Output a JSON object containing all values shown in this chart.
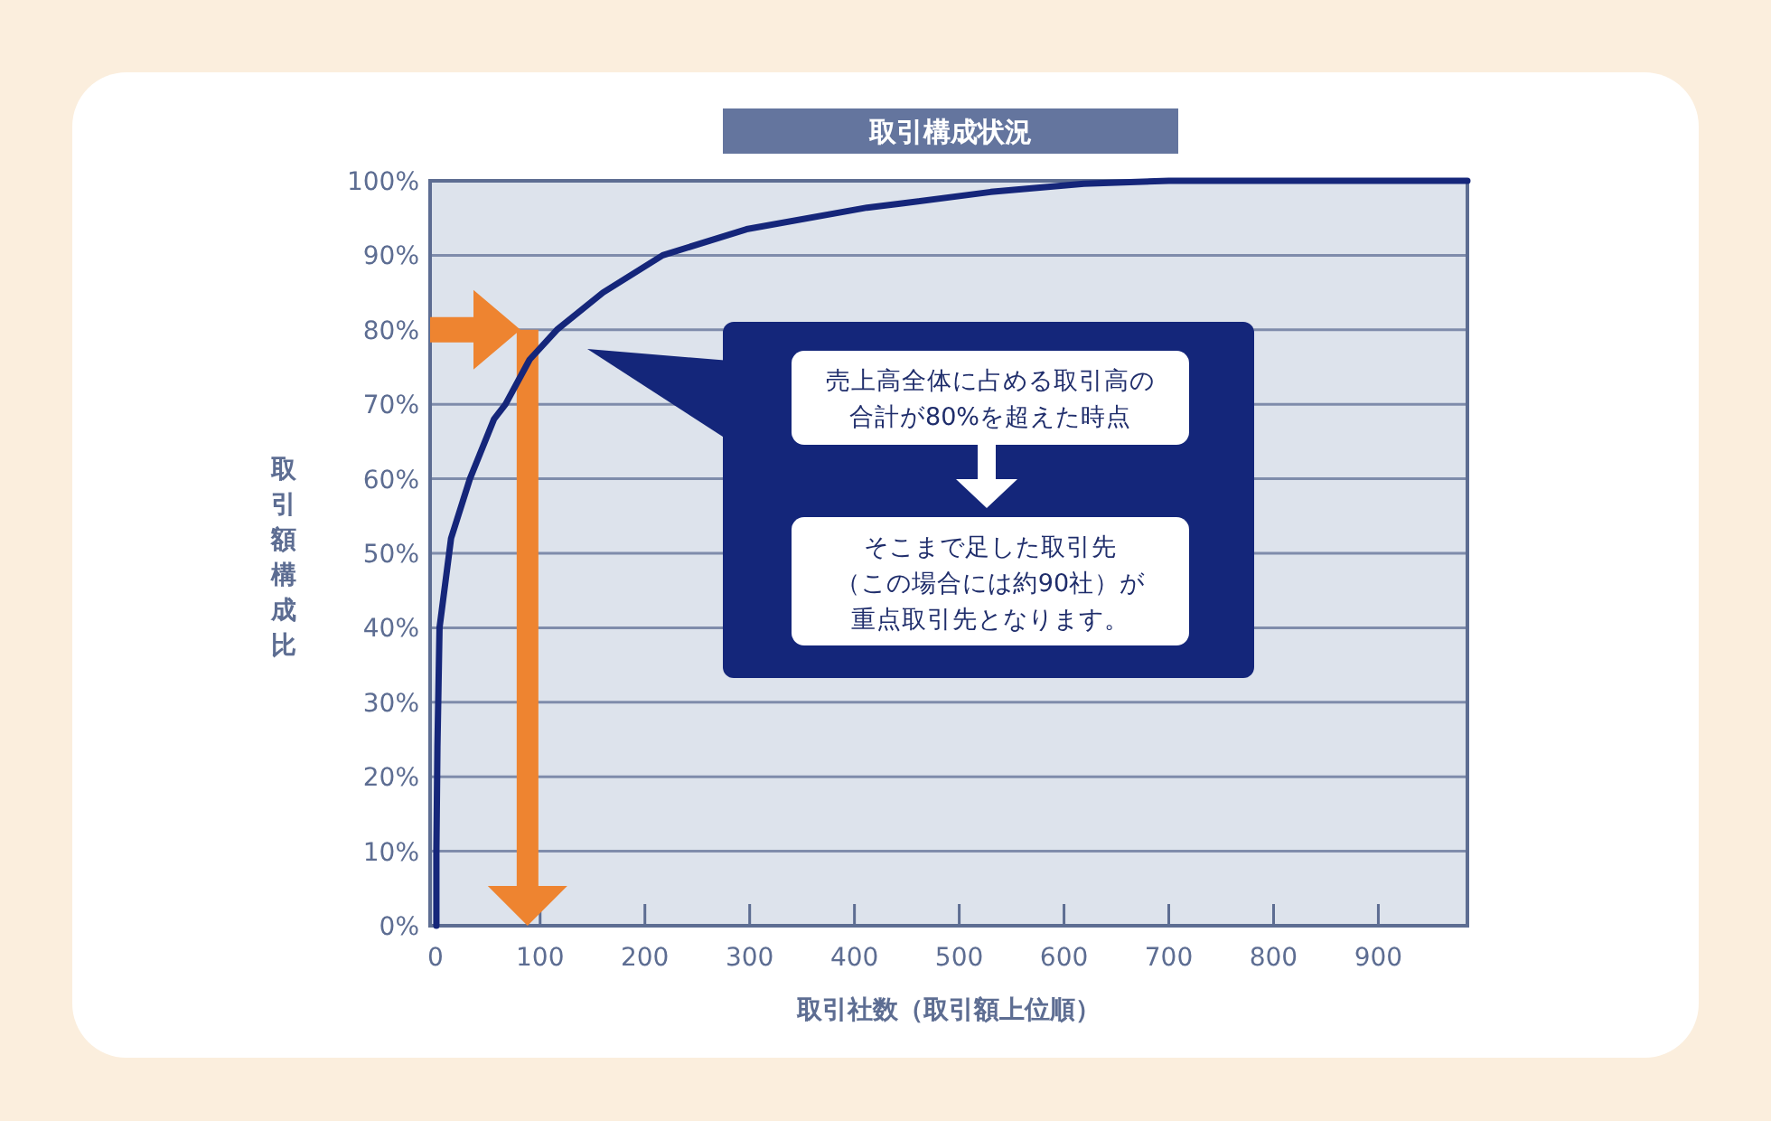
{
  "chart_data": {
    "type": "line",
    "title": "取引構成状況",
    "xlabel": "取引社数（取引額上位順）",
    "ylabel": "取引額構成比",
    "x": [
      1,
      1,
      2,
      4,
      15,
      33,
      56,
      67,
      90,
      116,
      160,
      217,
      297,
      412,
      447,
      530,
      619,
      700,
      985
    ],
    "series": [
      {
        "color": "#15267a",
        "values": [
          0,
          10,
          24,
          40,
          52,
          60,
          68,
          70,
          76,
          80,
          85,
          90,
          93.5,
          96.4,
          97,
          98.5,
          99.6,
          100,
          100
        ]
      }
    ],
    "xlim": [
      -5,
      985
    ],
    "xticks": [
      0,
      100,
      200,
      300,
      400,
      500,
      600,
      700,
      800,
      900
    ],
    "ylim": [
      0,
      100
    ],
    "yticks": [
      {
        "value": 0,
        "label": "0%"
      },
      {
        "value": 10,
        "label": "10%"
      },
      {
        "value": 20,
        "label": "20%"
      },
      {
        "value": 30,
        "label": "30%"
      },
      {
        "value": 40,
        "label": "40%"
      },
      {
        "value": 50,
        "label": "50%"
      },
      {
        "value": 60,
        "label": "60%"
      },
      {
        "value": 70,
        "label": "70%"
      },
      {
        "value": 80,
        "label": "80%"
      },
      {
        "value": 90,
        "label": "90%"
      },
      {
        "value": 100,
        "label": "100%"
      }
    ],
    "grid": "y",
    "marker": "none",
    "line_style": "solid",
    "annotations": [
      "売上高全体に占める取引高の合計が80%を超えた時点",
      "そこまで足した取引先（この場合には約90社）が重点取引先となります。"
    ]
  }
}
